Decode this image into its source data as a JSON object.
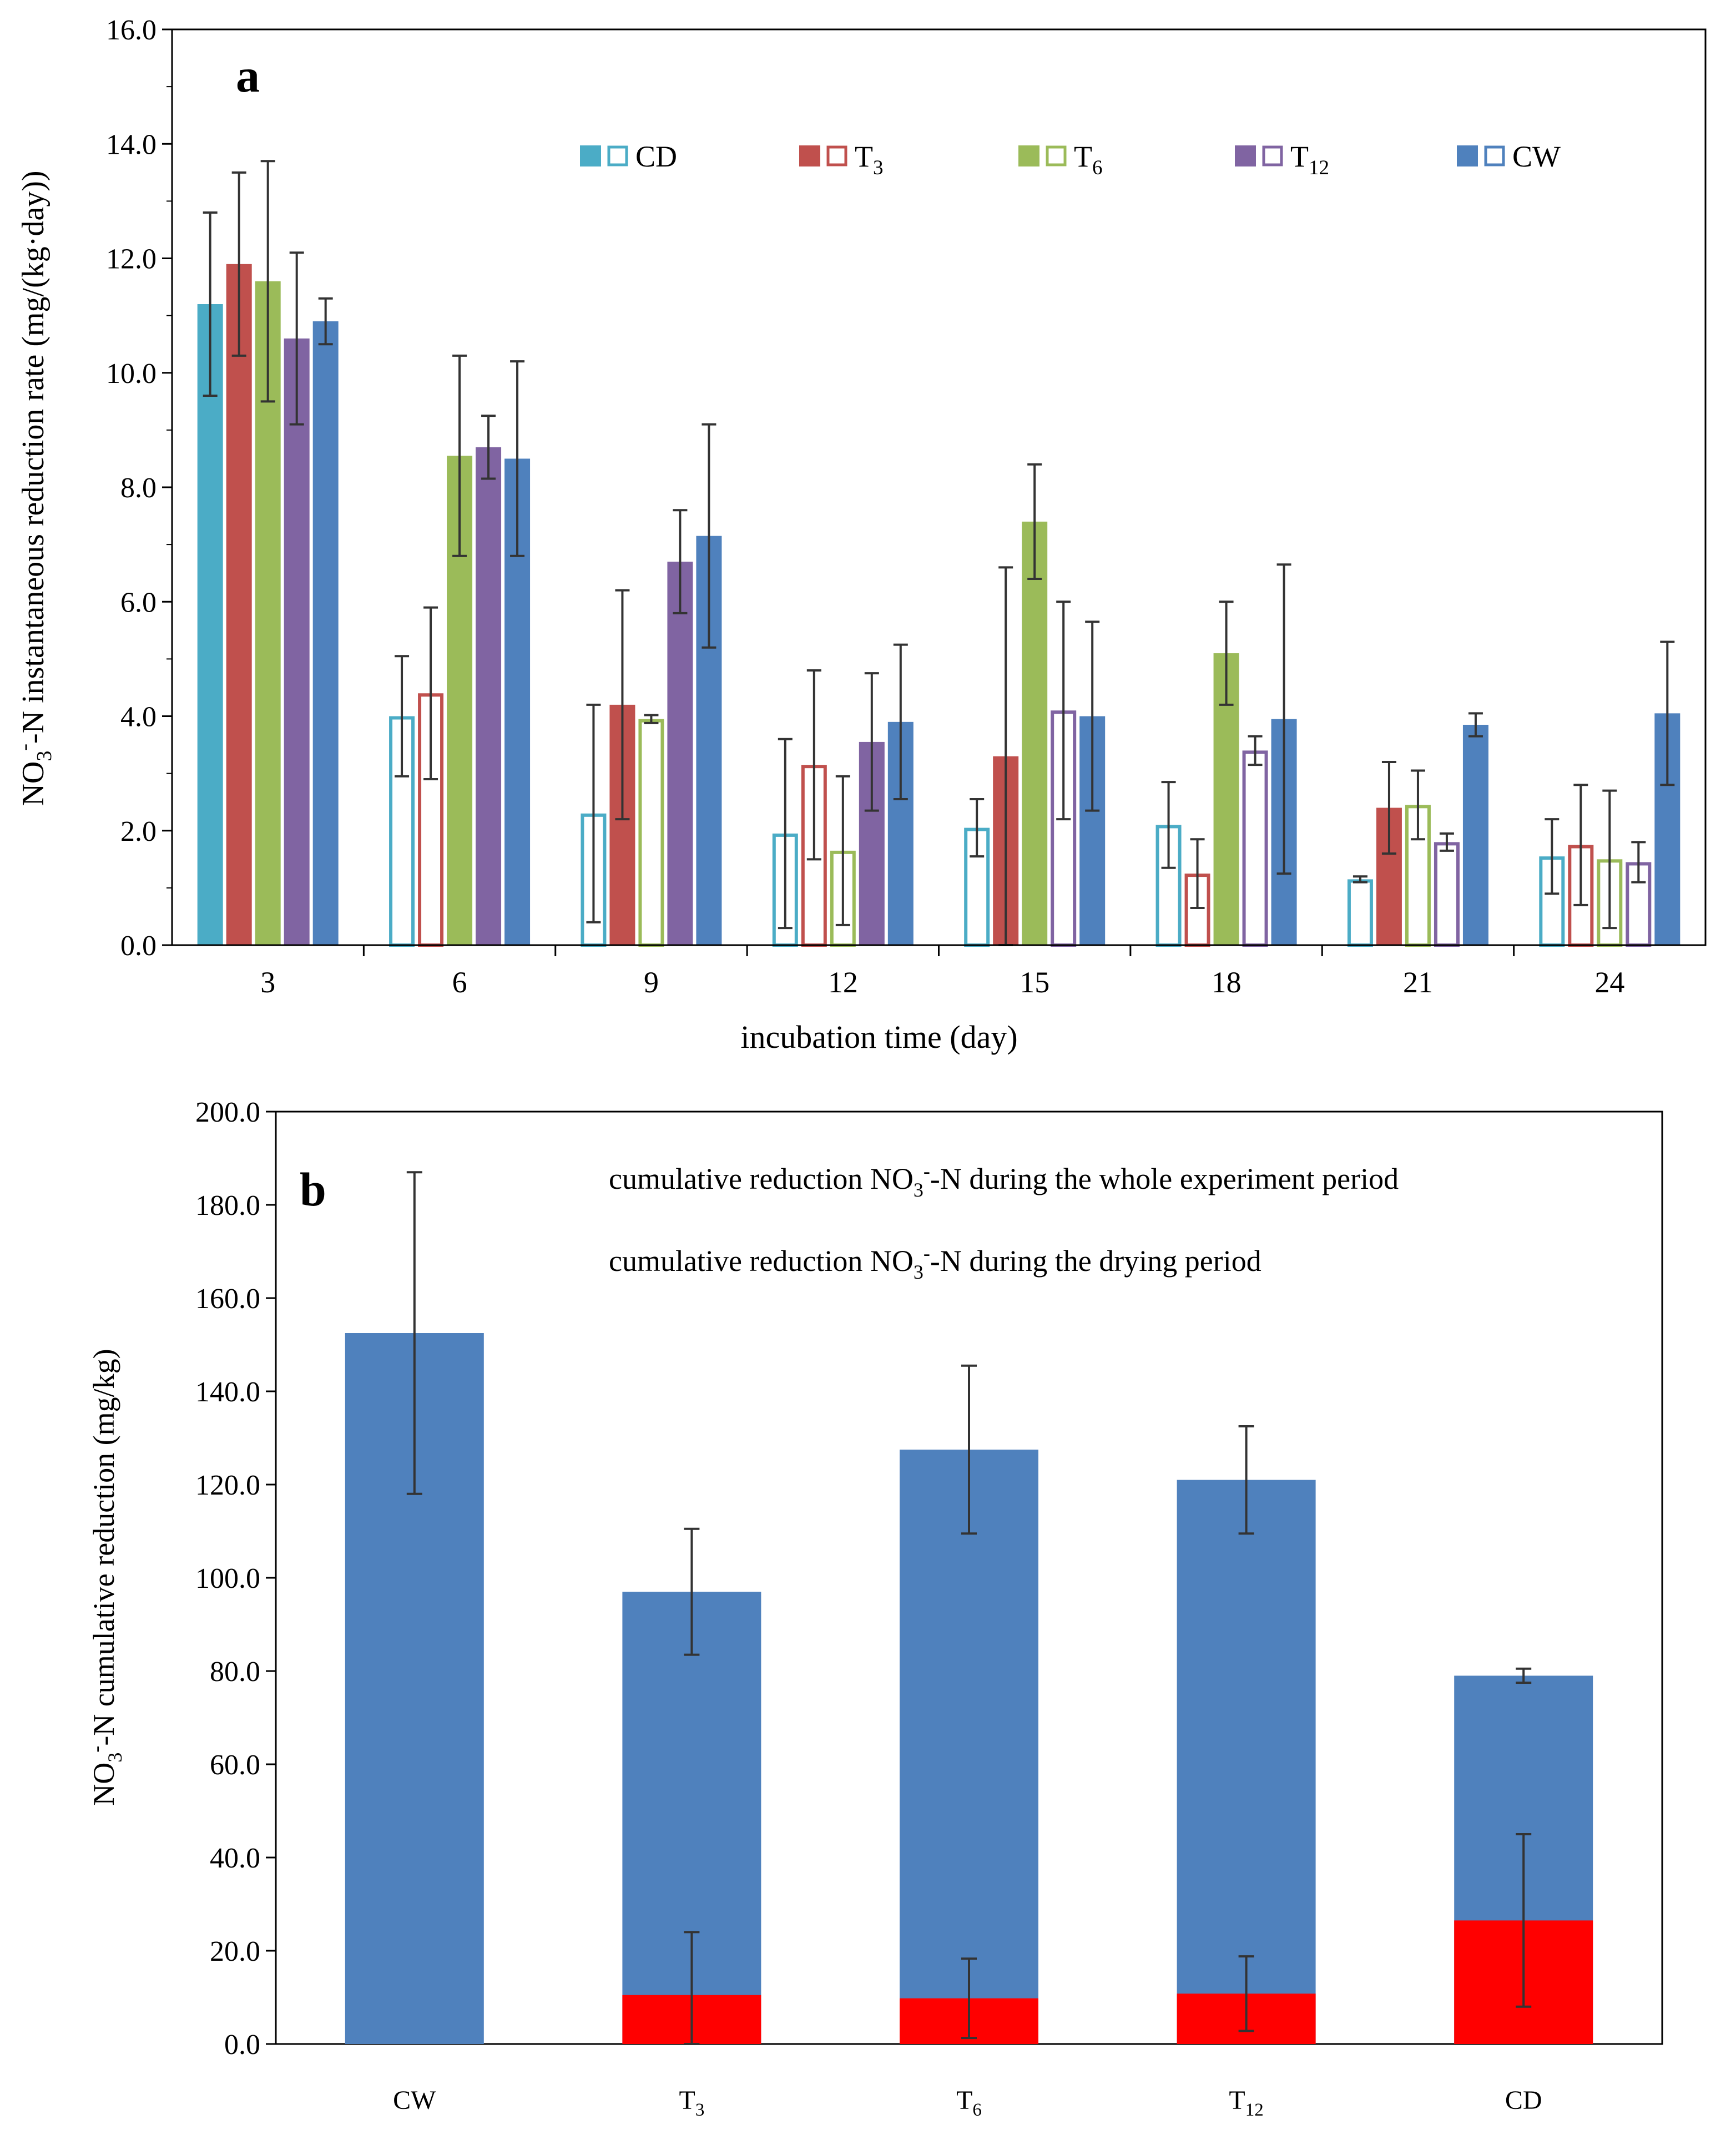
{
  "chart_data": [
    {
      "panel": "a",
      "type": "bar",
      "title": "",
      "xlabel": "incubation time (day)",
      "ylabel_main": "NO",
      "ylabel_sub": "3",
      "ylabel_sup": "-",
      "ylabel_tail": "-N instantaneous reduction rate (mg/(kg·day))",
      "ylim": [
        0,
        16
      ],
      "ytick_step": 2,
      "yticks": [
        "0.0",
        "2.0",
        "4.0",
        "6.0",
        "8.0",
        "10.0",
        "12.0",
        "14.0",
        "16.0"
      ],
      "categories": [
        "3",
        "6",
        "9",
        "12",
        "15",
        "18",
        "21",
        "24"
      ],
      "series": [
        {
          "name": "CD",
          "sub": "",
          "color": "#4BACC6",
          "values": [
            11.2,
            4.0,
            2.3,
            1.95,
            2.05,
            2.1,
            1.15,
            1.55
          ],
          "errors": [
            1.6,
            1.05,
            1.9,
            1.65,
            0.5,
            0.75,
            0.05,
            0.65
          ],
          "filled": [
            true,
            false,
            false,
            false,
            false,
            false,
            false,
            false
          ]
        },
        {
          "name": "T",
          "sub": "3",
          "color": "#C0504D",
          "values": [
            11.9,
            4.4,
            4.2,
            3.15,
            3.3,
            1.25,
            2.4,
            1.75
          ],
          "errors": [
            1.6,
            1.5,
            2.0,
            1.65,
            3.3,
            0.6,
            0.8,
            1.05
          ],
          "filled": [
            true,
            false,
            true,
            false,
            true,
            false,
            true,
            false
          ]
        },
        {
          "name": "T",
          "sub": "6",
          "color": "#9BBB59",
          "values": [
            11.6,
            8.55,
            3.95,
            1.65,
            7.4,
            5.1,
            2.45,
            1.5
          ],
          "errors": [
            2.1,
            1.75,
            0.07,
            1.3,
            1.0,
            0.9,
            0.6,
            1.2
          ],
          "filled": [
            true,
            true,
            false,
            false,
            true,
            true,
            false,
            false
          ]
        },
        {
          "name": "T",
          "sub": "12",
          "color": "#8064A2",
          "values": [
            10.6,
            8.7,
            6.7,
            3.55,
            4.1,
            3.4,
            1.8,
            1.45
          ],
          "errors": [
            1.5,
            0.55,
            0.9,
            1.2,
            1.9,
            0.25,
            0.15,
            0.35
          ],
          "filled": [
            true,
            true,
            true,
            true,
            false,
            false,
            false,
            false
          ]
        },
        {
          "name": "CW",
          "sub": "",
          "color": "#4F81BD",
          "values": [
            10.9,
            8.5,
            7.15,
            3.9,
            4.0,
            3.95,
            3.85,
            4.05
          ],
          "errors": [
            0.4,
            1.7,
            1.95,
            1.35,
            1.65,
            2.7,
            0.2,
            1.25
          ],
          "filled": [
            true,
            true,
            true,
            true,
            true,
            true,
            true,
            true
          ]
        }
      ]
    },
    {
      "panel": "b",
      "type": "bar",
      "stacked": false,
      "title": "",
      "xlabel": "",
      "ylabel_main": "NO",
      "ylabel_sub": "3",
      "ylabel_sup": "-",
      "ylabel_tail": "-N cumulative reduction (mg/kg)",
      "ylim": [
        0,
        200
      ],
      "ytick_step": 20,
      "yticks": [
        "0.0",
        "20.0",
        "40.0",
        "60.0",
        "80.0",
        "100.0",
        "120.0",
        "140.0",
        "160.0",
        "180.0",
        "200.0"
      ],
      "categories": [
        {
          "main": "CW",
          "sub": ""
        },
        {
          "main": "T",
          "sub": "3"
        },
        {
          "main": "T",
          "sub": "6"
        },
        {
          "main": "T",
          "sub": "12"
        },
        {
          "main": "CD",
          "sub": ""
        }
      ],
      "series": [
        {
          "name": "whole",
          "color": "#4F81BD",
          "values": [
            152.5,
            97.0,
            127.5,
            121.0,
            79.0
          ],
          "errors": [
            34.5,
            13.5,
            18.0,
            11.5,
            1.5
          ]
        },
        {
          "name": "drying",
          "color": "#FF0000",
          "values": [
            0,
            10.5,
            9.8,
            10.8,
            26.5
          ],
          "errors": [
            0,
            13.5,
            8.5,
            8.0,
            18.5
          ]
        }
      ]
    }
  ],
  "panel_labels": {
    "a": "a",
    "b": "b"
  },
  "legend_b": {
    "whole_pre": "cumulative reduction NO",
    "whole_sub": "3",
    "whole_sup": "-",
    "whole_post": "-N during the whole experiment period",
    "dry_pre": "cumulative reduction NO",
    "dry_sub": "3",
    "dry_sup": "-",
    "dry_post": "-N during the drying period"
  }
}
